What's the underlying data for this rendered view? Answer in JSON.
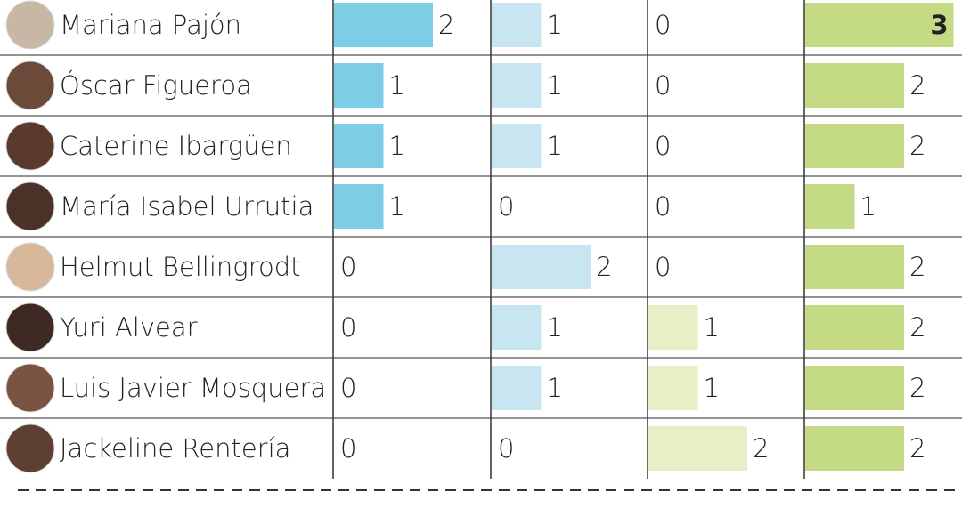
{
  "table": {
    "column_colors": [
      "#7ecde6",
      "#c8e6f2",
      "#e6efc6",
      "#c5da85"
    ],
    "rows": [
      {
        "name": "Mariana Pajón",
        "values": [
          2,
          1,
          0,
          3
        ]
      },
      {
        "name": "Óscar Figueroa",
        "values": [
          1,
          1,
          0,
          2
        ]
      },
      {
        "name": "Caterine Ibargüen",
        "values": [
          1,
          1,
          0,
          2
        ]
      },
      {
        "name": "María Isabel Urrutia",
        "values": [
          1,
          0,
          0,
          1
        ]
      },
      {
        "name": "Helmut Bellingrodt",
        "values": [
          0,
          2,
          0,
          2
        ]
      },
      {
        "name": "Yuri Alvear",
        "values": [
          0,
          1,
          1,
          2
        ]
      },
      {
        "name": "Luis Javier Mosquera",
        "values": [
          0,
          1,
          1,
          2
        ]
      },
      {
        "name": "Jackeline Rentería",
        "values": [
          0,
          0,
          2,
          2
        ]
      }
    ]
  }
}
